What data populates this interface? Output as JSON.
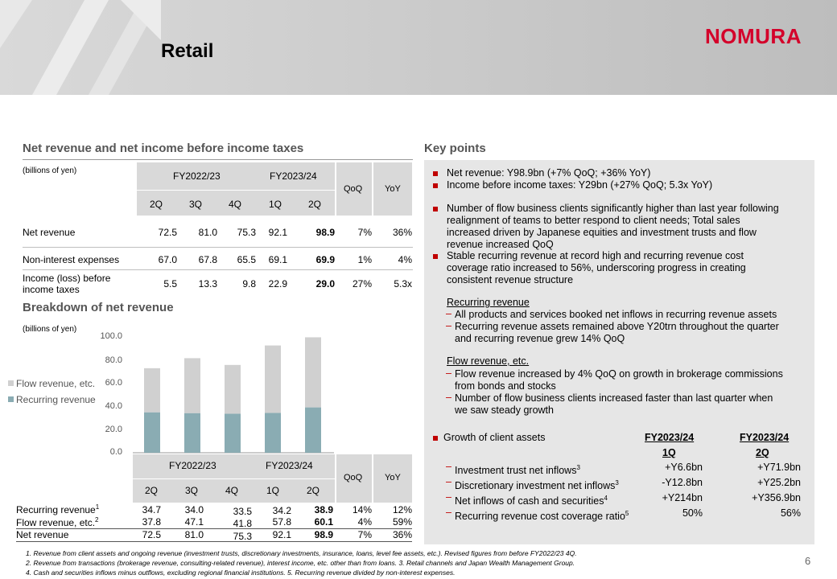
{
  "header": {
    "title": "Retail",
    "logo": "NOMURA"
  },
  "netrev_section": {
    "title": "Net revenue and net income before income taxes",
    "units": "(billions of yen)",
    "group_fy22": "FY2022/23",
    "group_fy23": "FY2023/24",
    "qoq": "QoQ",
    "yoy": "YoY",
    "quarters": [
      "2Q",
      "3Q",
      "4Q",
      "1Q",
      "2Q"
    ],
    "rows": [
      {
        "label": "Net revenue",
        "values": [
          "72.5",
          "81.0",
          "75.3",
          "92.1",
          "98.9"
        ],
        "qoq": "7%",
        "yoy": "36%"
      },
      {
        "label": "Non-interest expenses",
        "values": [
          "67.0",
          "67.8",
          "65.5",
          "69.1",
          "69.9"
        ],
        "qoq": "1%",
        "yoy": "4%"
      },
      {
        "label_line1": "Income (loss) before",
        "label_line2": "income taxes",
        "values": [
          "5.5",
          "13.3",
          "9.8",
          "22.9",
          "29.0"
        ],
        "qoq": "27%",
        "yoy": "5.3x"
      }
    ]
  },
  "breakdown_section": {
    "title": "Breakdown of net revenue",
    "units": "(billions of yen)",
    "legend_flow": "Flow revenue, etc.",
    "legend_recurring": "Recurring revenue",
    "group_fy22": "FY2022/23",
    "group_fy23": "FY2023/24",
    "qoq": "QoQ",
    "yoy": "YoY",
    "quarters": [
      "2Q",
      "3Q",
      "4Q",
      "1Q",
      "2Q"
    ],
    "rows": [
      {
        "label": "Recurring revenue",
        "sup": "1",
        "values": [
          "34.7",
          "34.0",
          "33.5",
          "34.2",
          "38.9"
        ],
        "qoq": "14%",
        "yoy": "12%"
      },
      {
        "label": "Flow revenue, etc.",
        "sup": "2",
        "values": [
          "37.8",
          "47.1",
          "41.8",
          "57.8",
          "60.1"
        ],
        "qoq": "4%",
        "yoy": "59%"
      },
      {
        "label": "Net revenue",
        "sup": "",
        "values": [
          "72.5",
          "81.0",
          "75.3",
          "92.1",
          "98.9"
        ],
        "qoq": "7%",
        "yoy": "36%"
      }
    ]
  },
  "chart_data": {
    "type": "bar",
    "stacked": true,
    "categories": [
      "FY2022/23 2Q",
      "FY2022/23 3Q",
      "FY2022/23 4Q",
      "FY2023/24 1Q",
      "FY2023/24 2Q"
    ],
    "series": [
      {
        "name": "Recurring revenue",
        "values": [
          34.7,
          34.0,
          33.5,
          34.2,
          38.9
        ],
        "color": "#8aacb3"
      },
      {
        "name": "Flow revenue, etc.",
        "values": [
          37.8,
          47.1,
          41.8,
          57.8,
          60.1
        ],
        "color": "#d0d0d0"
      }
    ],
    "ylim": [
      0,
      100
    ],
    "yticks": [
      "0.0",
      "20.0",
      "40.0",
      "60.0",
      "80.0",
      "100.0"
    ],
    "legend": "left"
  },
  "keypoints": {
    "title": "Key points",
    "bullets_top": [
      "Net revenue: Y98.9bn (+7% QoQ; +36% YoY)",
      "Income before income taxes: Y29bn (+27% QoQ; 5.3x YoY)"
    ],
    "flow_clients": [
      "Number of flow business clients significantly higher than last year following",
      "realignment of teams to better respond to client needs; Total sales",
      "increased driven by Japanese equities and investment trusts and flow",
      "revenue increased QoQ"
    ],
    "stable_recurring": [
      "Stable recurring revenue at record high and recurring revenue cost",
      "coverage ratio increased to 56%, underscoring progress in creating",
      "consistent revenue structure"
    ],
    "recurring_heading": "Recurring revenue",
    "recurring_items": [
      [
        "All products and services booked net inflows in recurring revenue assets"
      ],
      [
        "Recurring revenue assets remained above Y20trn throughout the quarter",
        "and recurring revenue grew 14% QoQ"
      ]
    ],
    "flow_heading": "Flow revenue, etc.",
    "flow_items": [
      [
        "Flow revenue increased by 4% QoQ on growth in brokerage commissions",
        "from bonds and stocks"
      ],
      [
        "Number of flow business clients increased faster than last quarter when",
        "we saw steady growth"
      ]
    ],
    "growth_heading": "Growth of client assets",
    "growth_col1_line1": "FY2023/24",
    "growth_col1_line2": "1Q",
    "growth_col2_line1": "FY2023/24",
    "growth_col2_line2": "2Q",
    "growth_rows": [
      {
        "label": "Investment trust net inflows",
        "sup": "3",
        "q1": "+Y6.6bn",
        "q2": "+Y71.9bn"
      },
      {
        "label": "Discretionary investment net inflows",
        "sup": "3",
        "q1": "-Y12.8bn",
        "q2": "+Y25.2bn"
      },
      {
        "label": "Net inflows of cash and securities",
        "sup": "4",
        "q1": "+Y214bn",
        "q2": "+Y356.9bn"
      },
      {
        "label": "Recurring revenue cost coverage ratio",
        "sup": "5",
        "q1": "50%",
        "q2": "56%"
      }
    ]
  },
  "footnotes": {
    "line1": "1.     Revenue from client assets and ongoing revenue (investment trusts, discretionary investments, insurance, loans, level fee assets, etc.). Revised figures from before FY2022/23 4Q.",
    "line2": "2.     Revenue from transactions (brokerage revenue, consulting-related revenue), interest income, etc. other than from loans.       3.     Retail channels and Japan Wealth Management Group.",
    "line3": "4.     Cash and securities inflows minus outflows, excluding regional financial institutions.       5.     Recurring revenue divided by non-interest expenses."
  },
  "page_number": "6"
}
